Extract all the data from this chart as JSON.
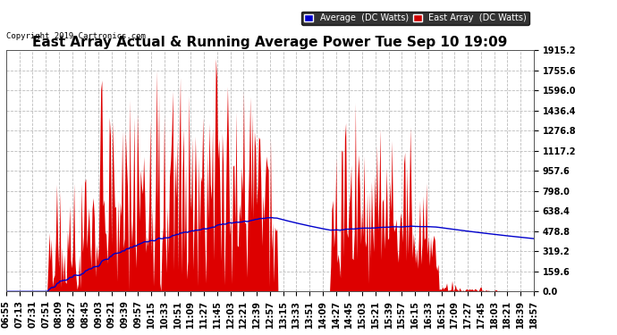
{
  "title": "East Array Actual & Running Average Power Tue Sep 10 19:09",
  "copyright": "Copyright 2019 Cartronics.com",
  "ylabel_right_ticks": [
    0.0,
    159.6,
    319.2,
    478.8,
    638.4,
    798.0,
    957.6,
    1117.2,
    1276.8,
    1436.4,
    1596.0,
    1755.6,
    1915.2
  ],
  "ymax": 1915.2,
  "ymin": 0.0,
  "background_color": "#ffffff",
  "plot_bg_color": "#ffffff",
  "grid_color": "#bbbbbb",
  "fill_color": "#dd0000",
  "avg_line_color": "#0000cc",
  "title_fontsize": 11,
  "tick_label_fontsize": 7,
  "legend_labels": [
    "Average  (DC Watts)",
    "East Array  (DC Watts)"
  ],
  "legend_colors_bg": [
    "#0000cc",
    "#cc0000"
  ],
  "x_tick_labels": [
    "06:55",
    "07:13",
    "07:31",
    "07:51",
    "08:09",
    "08:27",
    "08:45",
    "09:03",
    "09:21",
    "09:39",
    "09:57",
    "10:15",
    "10:33",
    "10:51",
    "11:09",
    "11:27",
    "11:45",
    "12:03",
    "12:21",
    "12:39",
    "12:57",
    "13:15",
    "13:33",
    "13:51",
    "14:09",
    "14:27",
    "14:45",
    "15:03",
    "15:21",
    "15:39",
    "15:57",
    "16:15",
    "16:33",
    "16:51",
    "17:09",
    "17:27",
    "17:45",
    "18:03",
    "18:21",
    "18:39",
    "18:57"
  ],
  "num_points": 492
}
